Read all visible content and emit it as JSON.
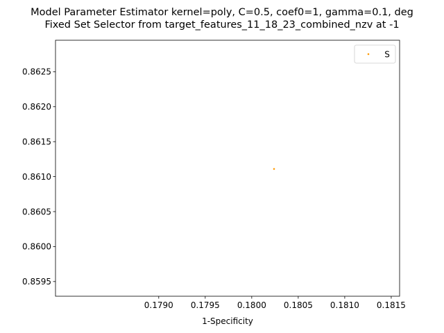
{
  "chart_data": {
    "type": "scatter",
    "title_line1": "Model Parameter Estimator kernel=poly, C=0.5, coef0=1, gamma=0.1, deg",
    "title_line2": "Fixed Set Selector from target_features_11_18_23_combined_nzv at -1",
    "xlabel": "1-Specificity",
    "ylabel": "",
    "xlim": [
      0.17789,
      0.18159
    ],
    "ylim": [
      0.85929,
      0.86295
    ],
    "x_ticks": [
      0.179,
      0.1795,
      0.18,
      0.1805,
      0.181,
      0.1815
    ],
    "x_tick_labels": [
      "0.1790",
      "0.1795",
      "0.1800",
      "0.1805",
      "0.1810",
      "0.1815"
    ],
    "y_ticks": [
      0.8595,
      0.86,
      0.8605,
      0.861,
      0.8615,
      0.862,
      0.8625
    ],
    "y_tick_labels": [
      "0.8595",
      "0.8600",
      "0.8605",
      "0.8610",
      "0.8615",
      "0.8620",
      "0.8625"
    ],
    "series": [
      {
        "name": "S",
        "color": "#ff9900",
        "points": [
          {
            "x": 0.18024,
            "y": 0.86111
          }
        ]
      }
    ],
    "legend": {
      "placement": "top-right",
      "entries": [
        "S"
      ]
    },
    "grid": false
  }
}
